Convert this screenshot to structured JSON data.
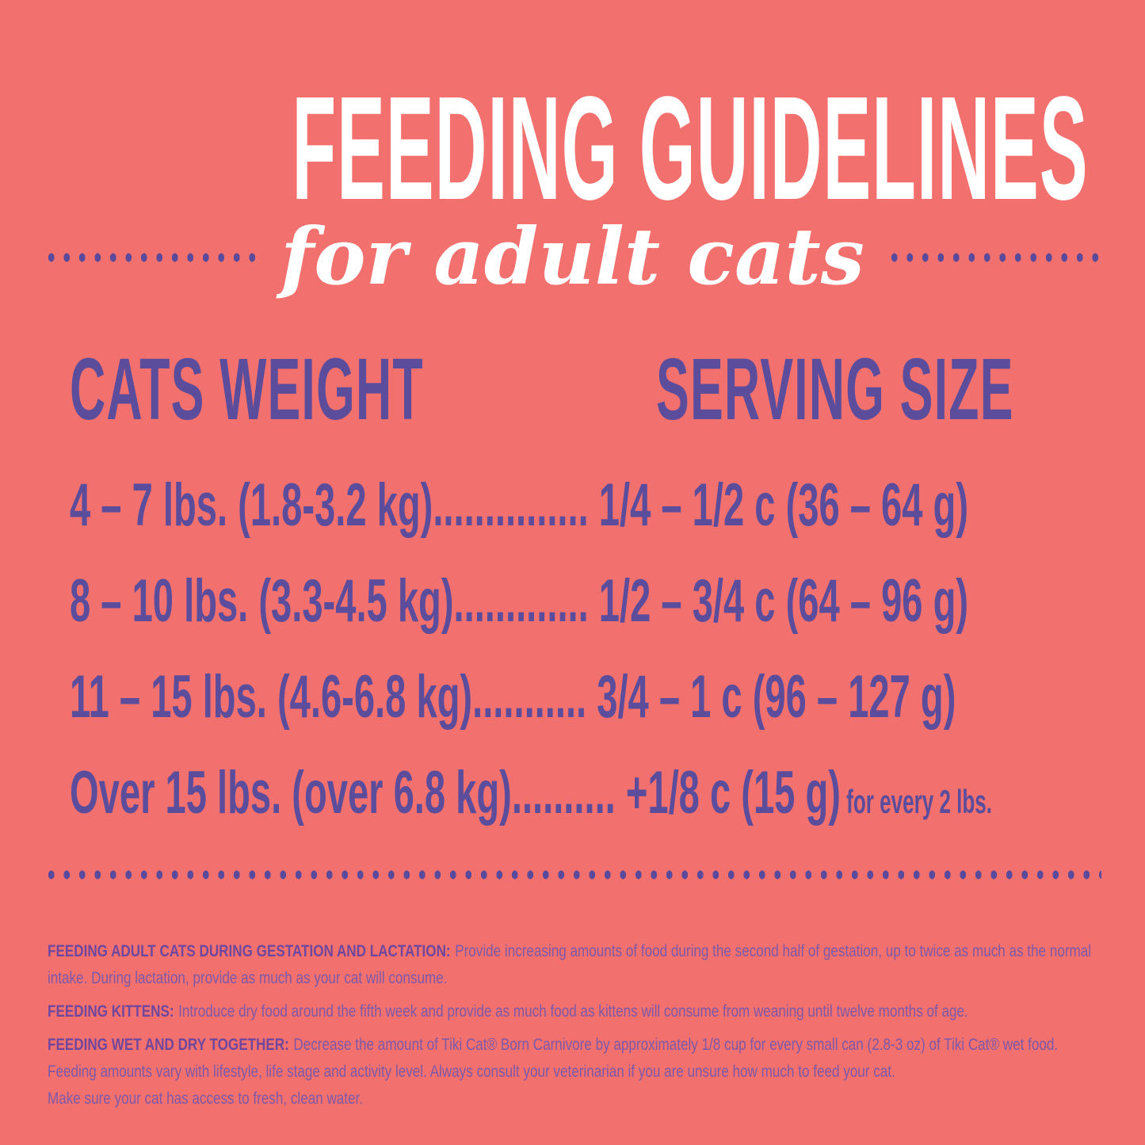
{
  "colors": {
    "background": "#F2716E",
    "title_white": "#FFFFFF",
    "purple_primary": "#5C4C9C",
    "purple_dots": "#5B4A9B",
    "purple_footnote_heading": "#71479E",
    "purple_footnote_body": "#7E58A8"
  },
  "header": {
    "title": "FEEDING GUIDELINES",
    "subtitle": "for adult cats"
  },
  "table": {
    "weight_header": "CATS WEIGHT",
    "serving_header": "SERVING SIZE",
    "rows": [
      {
        "weight": "4 – 7 lbs. (1.8-3.2 kg)",
        "leader": "...............",
        "serving": " 1/4 – 1/2 c (36 – 64 g)",
        "note": ""
      },
      {
        "weight": "8 – 10 lbs. (3.3-4.5 kg)",
        "leader": ".............",
        "serving": " 1/2 – 3/4 c (64 – 96 g)",
        "note": ""
      },
      {
        "weight": "11 – 15 lbs. (4.6-6.8 kg)",
        "leader": "...........",
        "serving": " 3/4 – 1 c (96 – 127 g)",
        "note": ""
      },
      {
        "weight": "Over 15 lbs. (over 6.8 kg)",
        "leader": "..........",
        "serving": " +1/8 c (15 g)",
        "note": " for every 2 lbs."
      }
    ]
  },
  "footnotes": [
    {
      "heading": "FEEDING ADULT CATS DURING GESTATION AND LACTATION:",
      "body": "Provide increasing amounts of food during the second half of gestation, up to twice as much as the normal\nintake.  During lactation, provide as much as your cat will consume."
    },
    {
      "heading": "FEEDING KITTENS:",
      "body": "Introduce dry food around the fifth week and provide as much food as kittens will consume from weaning until twelve months of age."
    },
    {
      "heading": "FEEDING WET AND DRY TOGETHER:",
      "body": "Decrease the amount of Tiki Cat® Born Carnivore by approximately 1/8 cup for every small can (2.8-3 oz) of Tiki Cat® wet food.\nFeeding amounts vary with lifestyle, life stage and activity level.  Always consult your veterinarian if you are unsure how much to feed your cat.\nMake sure your cat has access to fresh, clean water."
    }
  ]
}
